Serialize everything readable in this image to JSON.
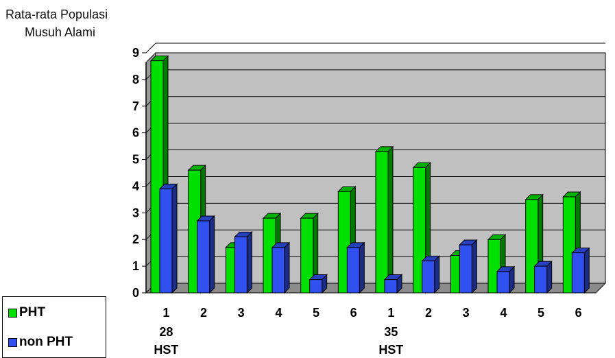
{
  "chart_data": {
    "type": "bar",
    "ylabel_lines": [
      "Rata-rata Populasi",
      "Musuh Alami"
    ],
    "ylim": [
      0,
      9
    ],
    "yticks": [
      "0",
      "1",
      "2",
      "3",
      "4",
      "5",
      "6",
      "7",
      "8",
      "9"
    ],
    "categories": [
      "1",
      "2",
      "3",
      "4",
      "5",
      "6",
      "1",
      "2",
      "3",
      "4",
      "5",
      "6"
    ],
    "groups": [
      {
        "lines": [
          "28",
          "HST"
        ]
      },
      {
        "lines": [
          "35",
          "HST"
        ]
      }
    ],
    "series": [
      {
        "name": "PHT",
        "color": "#00e000",
        "values": [
          8.7,
          4.6,
          1.7,
          2.8,
          2.8,
          3.8,
          5.3,
          4.7,
          1.4,
          2.0,
          3.5,
          3.6
        ]
      },
      {
        "name": "non PHT",
        "color": "#3050f0",
        "values": [
          3.9,
          2.7,
          2.1,
          1.7,
          0.5,
          1.7,
          0.5,
          1.2,
          1.8,
          0.8,
          1.0,
          1.5
        ]
      }
    ],
    "grid": true,
    "legend": "bottom-left"
  }
}
